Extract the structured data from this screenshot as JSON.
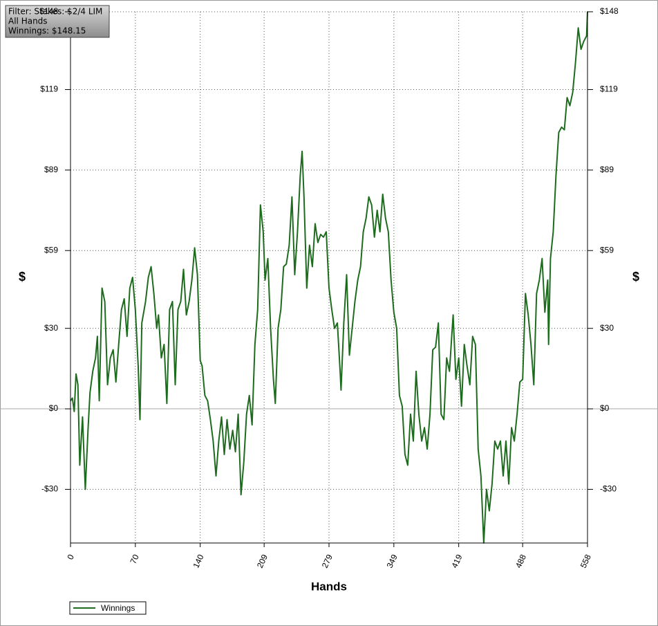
{
  "chart_data": {
    "type": "line",
    "info": [
      "Filter: Stakes: $2/4 LIM",
      "All Hands",
      "Winnings: $148.15"
    ],
    "xlabel": "Hands",
    "ylabel": "$",
    "xlim": [
      0,
      558
    ],
    "xticks": [
      0,
      70,
      140,
      209,
      279,
      349,
      419,
      488,
      558
    ],
    "ylim": [
      -50,
      148
    ],
    "yticks": [
      {
        "value": -30,
        "label": "-$30"
      },
      {
        "value": 0,
        "label": "$0"
      },
      {
        "value": 30,
        "label": "$30"
      },
      {
        "value": 59,
        "label": "$59"
      },
      {
        "value": 89,
        "label": "$89"
      },
      {
        "value": 119,
        "label": "$119"
      },
      {
        "value": 148,
        "label": "$148"
      }
    ],
    "grid": true,
    "x": [
      0,
      2,
      4,
      6,
      8,
      10,
      13,
      16,
      19,
      21,
      24,
      27,
      29,
      31,
      34,
      37,
      40,
      43,
      46,
      49,
      52,
      55,
      58,
      61,
      64,
      67,
      70,
      73,
      75,
      77,
      81,
      84,
      87,
      90,
      93,
      95,
      98,
      101,
      104,
      107,
      110,
      113,
      116,
      119,
      122,
      125,
      128,
      131,
      134,
      137,
      140,
      142,
      145,
      148,
      151,
      154,
      157,
      160,
      163,
      166,
      169,
      172,
      175,
      178,
      181,
      184,
      187,
      190,
      193,
      196,
      199,
      202,
      205,
      208,
      210,
      213,
      216,
      219,
      221,
      224,
      227,
      230,
      233,
      236,
      239,
      242,
      245,
      248,
      250,
      252,
      255,
      258,
      261,
      264,
      267,
      270,
      273,
      276,
      279,
      282,
      285,
      288,
      291,
      292,
      295,
      298,
      301,
      304,
      307,
      310,
      313,
      316,
      319,
      322,
      325,
      328,
      331,
      334,
      337,
      340,
      343,
      346,
      349,
      352,
      355,
      358,
      361,
      364,
      367,
      370,
      373,
      376,
      379,
      382,
      385,
      388,
      391,
      394,
      397,
      400,
      403,
      406,
      409,
      412,
      413,
      416,
      419,
      422,
      425,
      428,
      431,
      434,
      437,
      440,
      443,
      446,
      449,
      452,
      455,
      458,
      461,
      464,
      467,
      470,
      473,
      476,
      479,
      482,
      485,
      488,
      491,
      494,
      497,
      500,
      503,
      506,
      509,
      512,
      515,
      516,
      518,
      521,
      524,
      527,
      530,
      533,
      536,
      539,
      542,
      545,
      548,
      551,
      554,
      557,
      558
    ],
    "series": [
      {
        "name": "Winnings",
        "color": "#1d6b1d",
        "values": [
          3,
          4,
          -1,
          13,
          9,
          -21,
          -3,
          -30,
          -7,
          6,
          14,
          19,
          27,
          3,
          45,
          40,
          9,
          19,
          22,
          10,
          24,
          37,
          41,
          27,
          45,
          49,
          37,
          16,
          -4,
          32,
          40,
          49,
          53,
          43,
          30,
          35,
          19,
          24,
          2,
          37,
          40,
          9,
          37,
          40,
          52,
          35,
          40,
          48,
          60,
          50,
          18,
          16,
          5,
          3,
          -4,
          -12,
          -25,
          -12,
          -3,
          -17,
          -4,
          -15,
          -8,
          -16,
          -2,
          -32,
          -20,
          -2,
          5,
          -6,
          24,
          37,
          76,
          66,
          48,
          56,
          30,
          11,
          2,
          30,
          37,
          53,
          54,
          61,
          79,
          50,
          66,
          87,
          96,
          79,
          45,
          61,
          53,
          69,
          62,
          65,
          64,
          66,
          45,
          37,
          30,
          32,
          14,
          7,
          32,
          50,
          20,
          30,
          40,
          48,
          53,
          66,
          71,
          79,
          76,
          64,
          74,
          66,
          80,
          71,
          66,
          48,
          36,
          30,
          5,
          1,
          -17,
          -21,
          -2,
          -12,
          14,
          -2,
          -12,
          -7,
          -15,
          -2,
          22,
          23,
          32,
          -2,
          -4,
          19,
          14,
          30,
          35,
          11,
          19,
          1,
          24,
          16,
          9,
          27,
          24,
          -15,
          -25,
          -50,
          -30,
          -38,
          -28,
          -12,
          -15,
          -12,
          -25,
          -12,
          -28,
          -7,
          -12,
          -2,
          10,
          11,
          43,
          35,
          24,
          9,
          43,
          48,
          56,
          36,
          48,
          24,
          56,
          66,
          87,
          103,
          105,
          104,
          116,
          113,
          118,
          129,
          142,
          134,
          137,
          139,
          148.15
        ]
      }
    ]
  }
}
